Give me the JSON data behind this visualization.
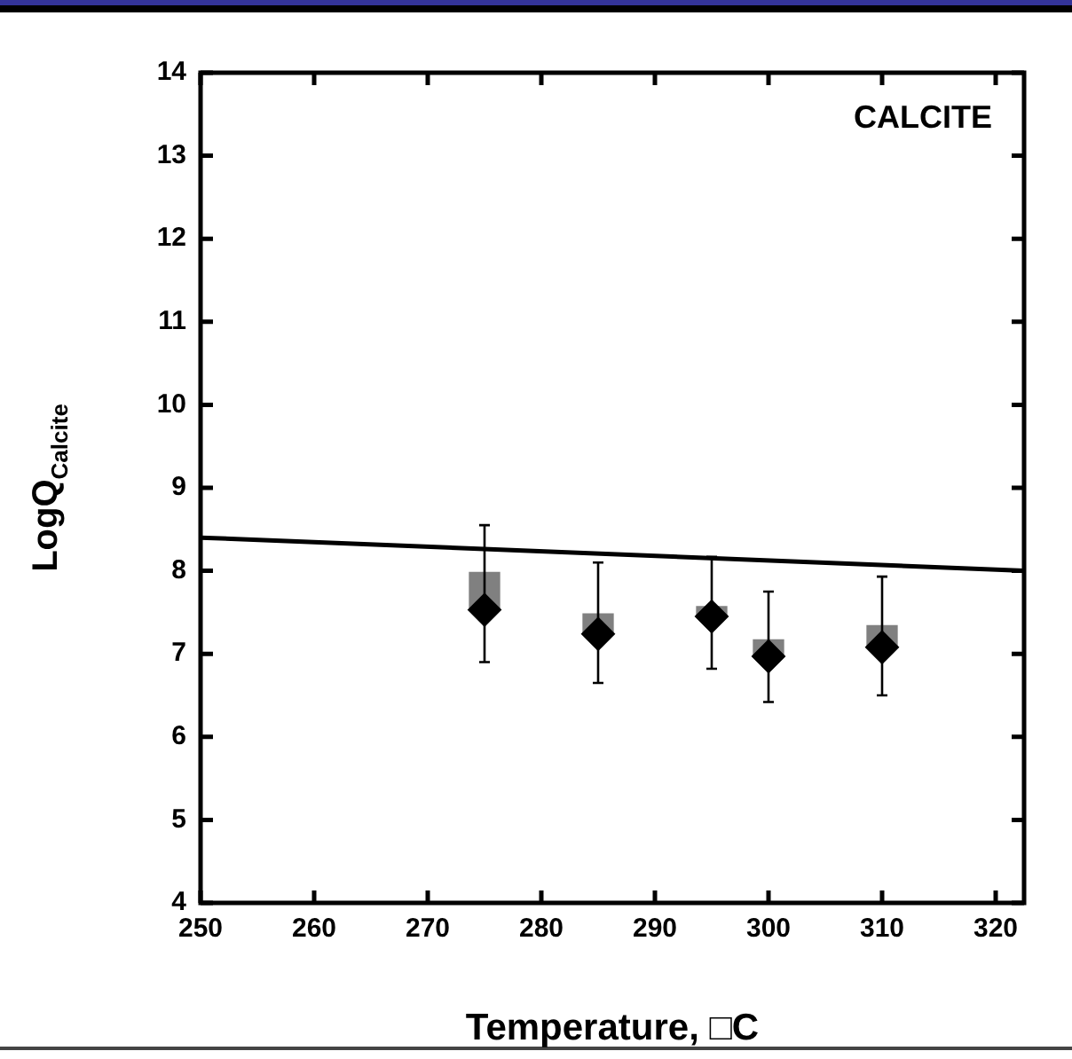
{
  "chart_data": {
    "type": "scatter",
    "xlabel": "Temperature, □C",
    "ylabel": "LogQ$_{Calcite}$",
    "annotations": [
      "CALCITE"
    ],
    "xlim": [
      250,
      322.5
    ],
    "ylim": [
      4,
      14
    ],
    "xticks": [
      250,
      260,
      270,
      280,
      290,
      300,
      310,
      320
    ],
    "yticks": [
      4,
      5,
      6,
      7,
      8,
      9,
      10,
      11,
      12,
      13,
      14
    ],
    "grid": false,
    "legend": false,
    "marker": "diamond",
    "series": [
      {
        "type": "line",
        "x": [
          250,
          322.5
        ],
        "values": [
          8.4,
          8.0
        ],
        "color": "#000000",
        "marker": "none"
      },
      {
        "type": "bar",
        "x": [
          275,
          285,
          295,
          300,
          310
        ],
        "base": [
          7.53,
          7.24,
          7.45,
          6.97,
          7.08
        ],
        "values": [
          0.45,
          0.24,
          0.12,
          0.2,
          0.26
        ],
        "color": "#808080"
      },
      {
        "x": [
          275,
          285,
          295,
          300,
          310
        ],
        "values": [
          7.53,
          7.24,
          7.45,
          6.97,
          7.08
        ],
        "color": "#000000",
        "errors": [
          [
            6.9,
            8.55
          ],
          [
            6.65,
            8.1
          ],
          [
            6.82,
            8.17
          ],
          [
            6.42,
            7.75
          ],
          [
            6.5,
            7.93
          ]
        ]
      }
    ]
  }
}
